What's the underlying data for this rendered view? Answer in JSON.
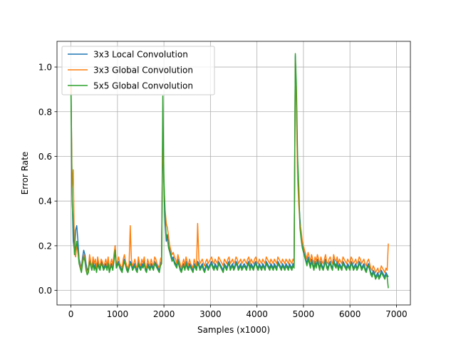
{
  "chart_data": {
    "type": "line",
    "xlabel": "Samples (x1000)",
    "ylabel": "Error Rate",
    "xlim": [
      -300,
      7300
    ],
    "ylim": [
      -0.065,
      1.115
    ],
    "xticks": [
      0,
      1000,
      2000,
      3000,
      4000,
      5000,
      6000,
      7000
    ],
    "xtick_labels": [
      "0",
      "1000",
      "2000",
      "3000",
      "4000",
      "5000",
      "6000",
      "7000"
    ],
    "yticks": [
      0.0,
      0.2,
      0.4,
      0.6,
      0.8,
      1.0
    ],
    "ytick_labels": [
      "0.0",
      "0.2",
      "0.4",
      "0.6",
      "0.8",
      "1.0"
    ],
    "grid": true,
    "legend": "upper-left",
    "x_start": 0,
    "x_step": 25,
    "series": [
      {
        "name": "3x3 Local Convolution",
        "color": "#1f77b4",
        "values": [
          0.95,
          0.42,
          0.22,
          0.18,
          0.27,
          0.29,
          0.22,
          0.14,
          0.12,
          0.1,
          0.15,
          0.18,
          0.16,
          0.12,
          0.09,
          0.1,
          0.14,
          0.12,
          0.11,
          0.13,
          0.1,
          0.12,
          0.09,
          0.13,
          0.11,
          0.1,
          0.13,
          0.12,
          0.1,
          0.11,
          0.12,
          0.1,
          0.13,
          0.09,
          0.11,
          0.12,
          0.1,
          0.14,
          0.2,
          0.11,
          0.12,
          0.13,
          0.11,
          0.1,
          0.09,
          0.12,
          0.14,
          0.12,
          0.1,
          0.09,
          0.11,
          0.13,
          0.12,
          0.1,
          0.11,
          0.12,
          0.1,
          0.09,
          0.13,
          0.11,
          0.1,
          0.12,
          0.11,
          0.13,
          0.1,
          0.09,
          0.12,
          0.11,
          0.1,
          0.12,
          0.11,
          0.1,
          0.13,
          0.12,
          0.11,
          0.1,
          0.09,
          0.12,
          0.13,
          0.74,
          0.45,
          0.3,
          0.22,
          0.25,
          0.2,
          0.18,
          0.16,
          0.14,
          0.15,
          0.13,
          0.12,
          0.11,
          0.14,
          0.12,
          0.1,
          0.09,
          0.11,
          0.12,
          0.1,
          0.13,
          0.11,
          0.1,
          0.12,
          0.11,
          0.1,
          0.09,
          0.12,
          0.11,
          0.1,
          0.13,
          0.12,
          0.1,
          0.11,
          0.12,
          0.1,
          0.09,
          0.11,
          0.12,
          0.1,
          0.11,
          0.12,
          0.13,
          0.11,
          0.1,
          0.12,
          0.11,
          0.1,
          0.13,
          0.12,
          0.11,
          0.1,
          0.09,
          0.12,
          0.11,
          0.1,
          0.12,
          0.13,
          0.1,
          0.11,
          0.12,
          0.1,
          0.11,
          0.13,
          0.12,
          0.1,
          0.11,
          0.12,
          0.1,
          0.11,
          0.12,
          0.11,
          0.1,
          0.12,
          0.13,
          0.1,
          0.12,
          0.11,
          0.1,
          0.12,
          0.13,
          0.11,
          0.1,
          0.12,
          0.11,
          0.1,
          0.12,
          0.11,
          0.1,
          0.13,
          0.12,
          0.11,
          0.1,
          0.12,
          0.11,
          0.1,
          0.12,
          0.11,
          0.1,
          0.13,
          0.12,
          0.11,
          0.1,
          0.12,
          0.11,
          0.1,
          0.12,
          0.11,
          0.1,
          0.12,
          0.11,
          0.1,
          0.12,
          0.11,
          1.05,
          0.85,
          0.55,
          0.4,
          0.32,
          0.25,
          0.2,
          0.18,
          0.16,
          0.14,
          0.12,
          0.15,
          0.13,
          0.11,
          0.14,
          0.12,
          0.1,
          0.13,
          0.11,
          0.14,
          0.12,
          0.1,
          0.13,
          0.11,
          0.1,
          0.12,
          0.14,
          0.11,
          0.1,
          0.12,
          0.13,
          0.11,
          0.1,
          0.14,
          0.12,
          0.11,
          0.13,
          0.1,
          0.12,
          0.11,
          0.1,
          0.13,
          0.12,
          0.11,
          0.1,
          0.12,
          0.11,
          0.1,
          0.13,
          0.12,
          0.1,
          0.11,
          0.12,
          0.1,
          0.11,
          0.13,
          0.12,
          0.1,
          0.11,
          0.12,
          0.1,
          0.09,
          0.11,
          0.12,
          0.1,
          0.08,
          0.07,
          0.09,
          0.08,
          0.06,
          0.07,
          0.08,
          0.06,
          0.07,
          0.09,
          0.08,
          0.07,
          0.06,
          0.08,
          0.07,
          0.06
        ]
      },
      {
        "name": "3x3 Global Convolution",
        "color": "#ff7f0e",
        "values": [
          0.92,
          0.46,
          0.54,
          0.17,
          0.15,
          0.2,
          0.18,
          0.13,
          0.11,
          0.09,
          0.13,
          0.16,
          0.14,
          0.1,
          0.08,
          0.09,
          0.16,
          0.13,
          0.1,
          0.15,
          0.12,
          0.14,
          0.1,
          0.15,
          0.12,
          0.11,
          0.14,
          0.13,
          0.11,
          0.12,
          0.14,
          0.11,
          0.15,
          0.1,
          0.12,
          0.14,
          0.11,
          0.16,
          0.2,
          0.12,
          0.13,
          0.15,
          0.12,
          0.11,
          0.1,
          0.14,
          0.16,
          0.13,
          0.11,
          0.1,
          0.12,
          0.29,
          0.14,
          0.11,
          0.12,
          0.14,
          0.11,
          0.1,
          0.15,
          0.12,
          0.11,
          0.14,
          0.12,
          0.15,
          0.11,
          0.1,
          0.14,
          0.12,
          0.11,
          0.14,
          0.12,
          0.11,
          0.15,
          0.14,
          0.12,
          0.11,
          0.1,
          0.14,
          0.15,
          0.73,
          0.48,
          0.36,
          0.3,
          0.28,
          0.24,
          0.2,
          0.18,
          0.16,
          0.17,
          0.15,
          0.14,
          0.12,
          0.16,
          0.14,
          0.12,
          0.1,
          0.12,
          0.14,
          0.11,
          0.15,
          0.13,
          0.11,
          0.14,
          0.12,
          0.11,
          0.1,
          0.14,
          0.12,
          0.11,
          0.3,
          0.14,
          0.12,
          0.13,
          0.14,
          0.12,
          0.11,
          0.13,
          0.14,
          0.12,
          0.13,
          0.14,
          0.15,
          0.13,
          0.12,
          0.14,
          0.13,
          0.12,
          0.15,
          0.14,
          0.13,
          0.12,
          0.11,
          0.14,
          0.13,
          0.12,
          0.14,
          0.15,
          0.12,
          0.13,
          0.14,
          0.12,
          0.13,
          0.15,
          0.14,
          0.12,
          0.13,
          0.14,
          0.12,
          0.13,
          0.14,
          0.13,
          0.12,
          0.14,
          0.15,
          0.12,
          0.14,
          0.13,
          0.12,
          0.14,
          0.15,
          0.13,
          0.12,
          0.14,
          0.13,
          0.12,
          0.14,
          0.13,
          0.12,
          0.15,
          0.14,
          0.13,
          0.12,
          0.14,
          0.13,
          0.12,
          0.14,
          0.13,
          0.12,
          0.15,
          0.14,
          0.13,
          0.12,
          0.14,
          0.13,
          0.12,
          0.14,
          0.13,
          0.12,
          0.14,
          0.13,
          0.12,
          0.14,
          0.13,
          1.03,
          0.82,
          0.5,
          0.38,
          0.3,
          0.27,
          0.22,
          0.2,
          0.18,
          0.16,
          0.14,
          0.17,
          0.15,
          0.13,
          0.16,
          0.14,
          0.12,
          0.15,
          0.13,
          0.16,
          0.14,
          0.12,
          0.15,
          0.13,
          0.12,
          0.14,
          0.16,
          0.13,
          0.12,
          0.14,
          0.15,
          0.13,
          0.12,
          0.16,
          0.14,
          0.13,
          0.15,
          0.12,
          0.14,
          0.13,
          0.12,
          0.15,
          0.14,
          0.13,
          0.12,
          0.14,
          0.13,
          0.12,
          0.15,
          0.14,
          0.12,
          0.13,
          0.14,
          0.12,
          0.13,
          0.15,
          0.14,
          0.12,
          0.13,
          0.14,
          0.12,
          0.11,
          0.13,
          0.14,
          0.12,
          0.1,
          0.09,
          0.11,
          0.1,
          0.08,
          0.09,
          0.1,
          0.08,
          0.09,
          0.11,
          0.1,
          0.09,
          0.08,
          0.1,
          0.09,
          0.21
        ]
      },
      {
        "name": "5x5 Global Convolution",
        "color": "#2ca02c",
        "values": [
          0.88,
          0.4,
          0.3,
          0.16,
          0.19,
          0.22,
          0.17,
          0.12,
          0.1,
          0.08,
          0.12,
          0.15,
          0.13,
          0.09,
          0.07,
          0.08,
          0.13,
          0.11,
          0.09,
          0.12,
          0.09,
          0.11,
          0.08,
          0.12,
          0.1,
          0.09,
          0.12,
          0.11,
          0.09,
          0.1,
          0.11,
          0.09,
          0.12,
          0.08,
          0.1,
          0.11,
          0.09,
          0.13,
          0.18,
          0.1,
          0.11,
          0.12,
          0.1,
          0.09,
          0.08,
          0.11,
          0.13,
          0.11,
          0.09,
          0.08,
          0.1,
          0.12,
          0.11,
          0.09,
          0.1,
          0.11,
          0.09,
          0.08,
          0.12,
          0.1,
          0.09,
          0.11,
          0.1,
          0.12,
          0.09,
          0.08,
          0.11,
          0.1,
          0.09,
          0.11,
          0.1,
          0.09,
          0.12,
          0.11,
          0.1,
          0.09,
          0.08,
          0.11,
          0.12,
          0.87,
          0.5,
          0.33,
          0.24,
          0.23,
          0.19,
          0.17,
          0.15,
          0.13,
          0.14,
          0.12,
          0.11,
          0.1,
          0.13,
          0.11,
          0.09,
          0.08,
          0.1,
          0.11,
          0.09,
          0.12,
          0.1,
          0.09,
          0.11,
          0.1,
          0.09,
          0.08,
          0.11,
          0.1,
          0.09,
          0.12,
          0.11,
          0.09,
          0.1,
          0.11,
          0.09,
          0.08,
          0.1,
          0.11,
          0.09,
          0.1,
          0.11,
          0.12,
          0.1,
          0.09,
          0.11,
          0.1,
          0.09,
          0.12,
          0.11,
          0.1,
          0.09,
          0.08,
          0.11,
          0.1,
          0.09,
          0.11,
          0.12,
          0.09,
          0.1,
          0.11,
          0.09,
          0.1,
          0.12,
          0.11,
          0.09,
          0.1,
          0.11,
          0.09,
          0.1,
          0.11,
          0.1,
          0.09,
          0.11,
          0.12,
          0.09,
          0.11,
          0.1,
          0.09,
          0.11,
          0.12,
          0.1,
          0.09,
          0.11,
          0.1,
          0.09,
          0.11,
          0.1,
          0.09,
          0.12,
          0.11,
          0.1,
          0.09,
          0.11,
          0.1,
          0.09,
          0.11,
          0.1,
          0.09,
          0.12,
          0.11,
          0.1,
          0.09,
          0.11,
          0.1,
          0.09,
          0.11,
          0.1,
          0.09,
          0.11,
          0.1,
          0.09,
          0.11,
          0.1,
          1.06,
          0.9,
          0.6,
          0.46,
          0.28,
          0.23,
          0.19,
          0.17,
          0.15,
          0.13,
          0.11,
          0.14,
          0.12,
          0.1,
          0.13,
          0.11,
          0.09,
          0.12,
          0.1,
          0.13,
          0.11,
          0.09,
          0.12,
          0.1,
          0.09,
          0.11,
          0.13,
          0.1,
          0.09,
          0.11,
          0.12,
          0.1,
          0.09,
          0.13,
          0.11,
          0.1,
          0.12,
          0.09,
          0.11,
          0.1,
          0.09,
          0.12,
          0.11,
          0.1,
          0.09,
          0.11,
          0.1,
          0.09,
          0.12,
          0.11,
          0.09,
          0.1,
          0.11,
          0.09,
          0.1,
          0.12,
          0.11,
          0.09,
          0.1,
          0.11,
          0.09,
          0.08,
          0.1,
          0.11,
          0.09,
          0.07,
          0.06,
          0.08,
          0.07,
          0.05,
          0.06,
          0.07,
          0.05,
          0.06,
          0.08,
          0.07,
          0.06,
          0.05,
          0.07,
          0.06,
          0.01
        ]
      }
    ]
  }
}
